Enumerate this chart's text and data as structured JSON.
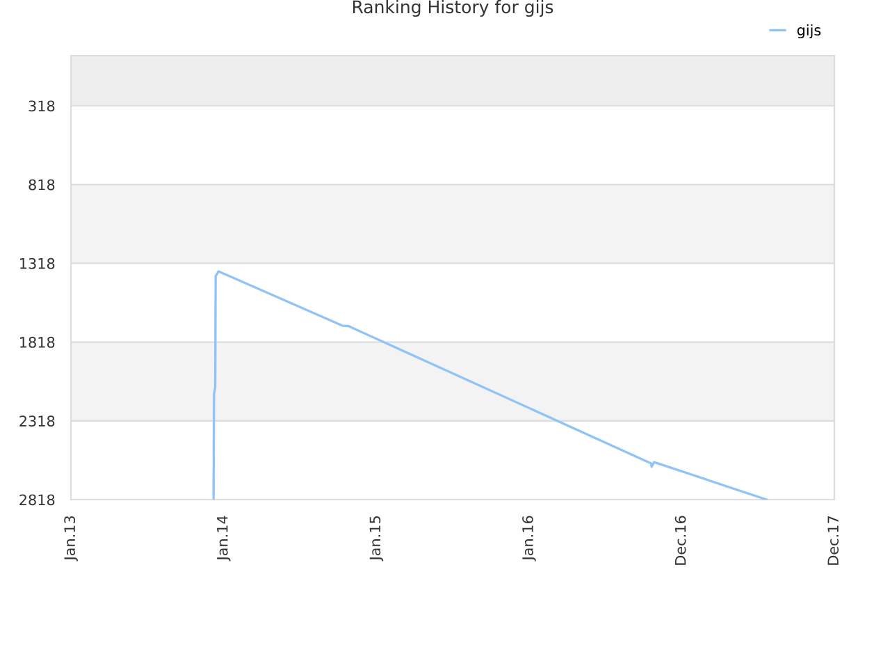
{
  "chart_data": {
    "type": "line",
    "title": "Ranking History for gijs",
    "series": [
      {
        "name": "gijs",
        "color": "#90c4f7",
        "x": [
          "2013-12-08",
          "2013-12-09",
          "2013-12-12",
          "2013-12-13",
          "2013-12-20",
          "2014-10-12",
          "2014-10-26",
          "2016-10-19",
          "2016-10-20",
          "2016-10-26",
          "2017-07-22"
        ],
        "values": [
          2818,
          2150,
          2100,
          1400,
          1369,
          1714,
          1716,
          2588,
          2610,
          2580,
          2818
        ]
      }
    ],
    "xlim": [
      "2013-01-01",
      "2017-12-31"
    ],
    "xticks": [
      {
        "value": "2013-01-01",
        "label": "Jan.13"
      },
      {
        "value": "2014-01-01",
        "label": "Jan.14"
      },
      {
        "value": "2015-01-01",
        "label": "Jan.15"
      },
      {
        "value": "2016-01-01",
        "label": "Jan.16"
      },
      {
        "value": "2016-12-31",
        "label": "Dec.16"
      },
      {
        "value": "2017-12-31",
        "label": "Dec.17"
      }
    ],
    "ylim": [
      2818,
      0
    ],
    "yticks": [
      318,
      818,
      1318,
      1818,
      2318,
      2818
    ],
    "bands": [
      {
        "axis": "y",
        "from": 0,
        "to": 318,
        "color": "#eeeeee"
      },
      {
        "axis": "y",
        "from": 818,
        "to": 1318,
        "color": "#f3f3f3"
      },
      {
        "axis": "y",
        "from": 1818,
        "to": 2318,
        "color": "#f3f3f3"
      }
    ],
    "grid": "y",
    "legend": "top right",
    "marker": "none",
    "line_style": "solid"
  }
}
